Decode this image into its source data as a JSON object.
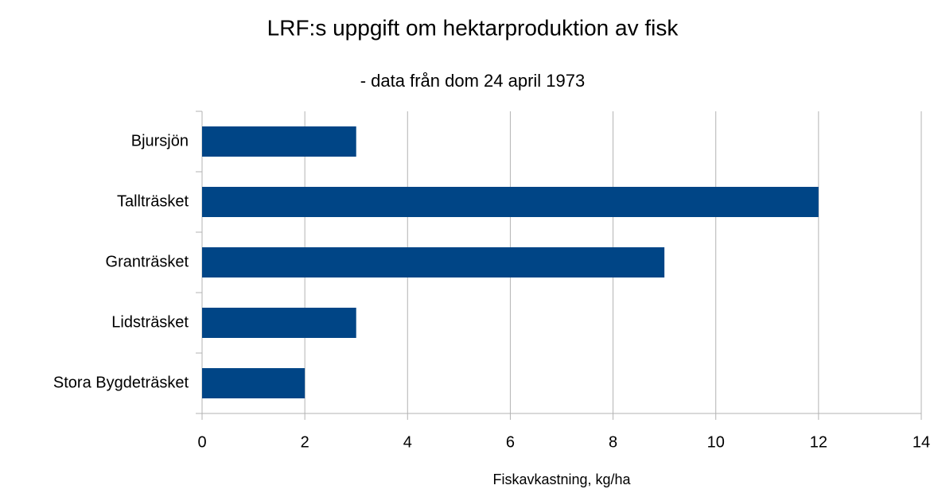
{
  "chart_data": {
    "type": "bar",
    "orientation": "horizontal",
    "title": "LRF:s uppgift om hektarproduktion av fisk",
    "subtitle": "- data från dom 24 april 1973",
    "x_label": "Fiskavkastning, kg/ha",
    "categories": [
      "Bjursjön",
      "Tallträsket",
      "Granträsket",
      "Lidsträsket",
      "Stora Bygdeträsket"
    ],
    "values": [
      3,
      12,
      9,
      3,
      2
    ],
    "color": "#004586",
    "xlim": [
      0,
      14
    ],
    "xticks": [
      0,
      2,
      4,
      6,
      8,
      10,
      12,
      14
    ],
    "grid": true
  }
}
